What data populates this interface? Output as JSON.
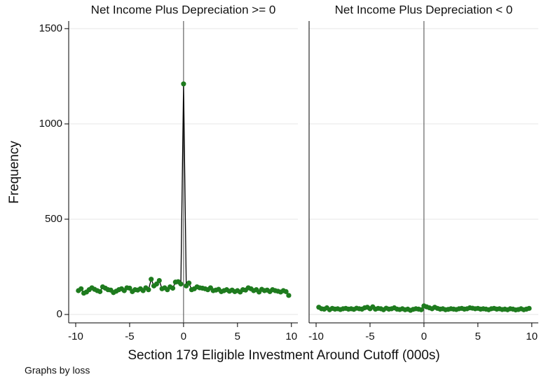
{
  "chart_data": [
    {
      "type": "line",
      "title": "Net Income Plus Depreciation >= 0",
      "x": [
        -9.75,
        -9.5,
        -9.25,
        -9,
        -8.75,
        -8.5,
        -8.25,
        -8,
        -7.75,
        -7.5,
        -7.25,
        -7,
        -6.75,
        -6.5,
        -6.25,
        -6,
        -5.75,
        -5.5,
        -5.25,
        -5,
        -4.75,
        -4.5,
        -4.25,
        -4,
        -3.75,
        -3.5,
        -3.25,
        -3,
        -2.75,
        -2.5,
        -2.25,
        -2,
        -1.75,
        -1.5,
        -1.25,
        -1,
        -0.75,
        -0.5,
        -0.25,
        0,
        0.25,
        0.5,
        0.75,
        1,
        1.25,
        1.5,
        1.75,
        2,
        2.25,
        2.5,
        2.75,
        3,
        3.25,
        3.5,
        3.75,
        4,
        4.25,
        4.5,
        4.75,
        5,
        5.25,
        5.5,
        5.75,
        6,
        6.25,
        6.5,
        6.75,
        7,
        7.25,
        7.5,
        7.75,
        8,
        8.25,
        8.5,
        8.75,
        9,
        9.25,
        9.5,
        9.75
      ],
      "values": [
        125,
        135,
        112,
        118,
        130,
        140,
        132,
        125,
        120,
        145,
        138,
        130,
        128,
        115,
        122,
        130,
        135,
        125,
        140,
        138,
        120,
        130,
        128,
        135,
        125,
        140,
        130,
        185,
        150,
        160,
        178,
        135,
        140,
        130,
        145,
        138,
        170,
        172,
        160,
        1210,
        150,
        165,
        130,
        135,
        145,
        140,
        138,
        135,
        130,
        140,
        125,
        128,
        132,
        120,
        125,
        130,
        122,
        128,
        120,
        125,
        118,
        130,
        128,
        140,
        135,
        125,
        130,
        118,
        132,
        125,
        128,
        120,
        130,
        125,
        122,
        118,
        125,
        120,
        100
      ],
      "color": "#1e7b1e",
      "line_color": "#000000",
      "reference_x": 0,
      "xlim": [
        -10.65,
        10.6
      ],
      "ylim": [
        -44,
        1540
      ],
      "xticks": [
        -10,
        -5,
        0,
        5,
        10
      ],
      "yticks": [
        0,
        500,
        1000,
        1500
      ],
      "grid": true,
      "show_yticks": true
    },
    {
      "type": "line",
      "title": "Net Income Plus Depreciation < 0",
      "x": [
        -9.75,
        -9.5,
        -9.25,
        -9,
        -8.75,
        -8.5,
        -8.25,
        -8,
        -7.75,
        -7.5,
        -7.25,
        -7,
        -6.75,
        -6.5,
        -6.25,
        -6,
        -5.75,
        -5.5,
        -5.25,
        -5,
        -4.75,
        -4.5,
        -4.25,
        -4,
        -3.75,
        -3.5,
        -3.25,
        -3,
        -2.75,
        -2.5,
        -2.25,
        -2,
        -1.75,
        -1.5,
        -1.25,
        -1,
        -0.75,
        -0.5,
        -0.25,
        0,
        0.25,
        0.5,
        0.75,
        1,
        1.25,
        1.5,
        1.75,
        2,
        2.25,
        2.5,
        2.75,
        3,
        3.25,
        3.5,
        3.75,
        4,
        4.25,
        4.5,
        4.75,
        5,
        5.25,
        5.5,
        5.75,
        6,
        6.25,
        6.5,
        6.75,
        7,
        7.25,
        7.5,
        7.75,
        8,
        8.25,
        8.5,
        8.75,
        9,
        9.25,
        9.5,
        9.75
      ],
      "values": [
        38,
        30,
        28,
        35,
        25,
        32,
        28,
        30,
        26,
        30,
        32,
        28,
        30,
        27,
        33,
        30,
        28,
        35,
        38,
        30,
        40,
        28,
        32,
        30,
        25,
        33,
        28,
        30,
        35,
        28,
        26,
        30,
        25,
        28,
        22,
        27,
        30,
        28,
        25,
        45,
        40,
        35,
        30,
        38,
        32,
        28,
        30,
        25,
        27,
        30,
        28,
        26,
        30,
        32,
        28,
        30,
        35,
        33,
        30,
        32,
        28,
        30,
        28,
        25,
        30,
        32,
        28,
        30,
        26,
        28,
        25,
        30,
        28,
        24,
        26,
        30,
        25,
        28,
        32
      ],
      "color": "#1e7b1e",
      "line_color": "#000000",
      "reference_x": 0,
      "xlim": [
        -10.65,
        10.6
      ],
      "ylim": [
        -44,
        1540
      ],
      "xticks": [
        -10,
        -5,
        0,
        5,
        10
      ],
      "yticks": [
        0,
        500,
        1000,
        1500
      ],
      "grid": true,
      "show_yticks": false
    }
  ],
  "xlabel": "Section 179 Eligible Investment Around Cutoff (000s)",
  "ylabel": "Frequency",
  "note": "Graphs by loss"
}
